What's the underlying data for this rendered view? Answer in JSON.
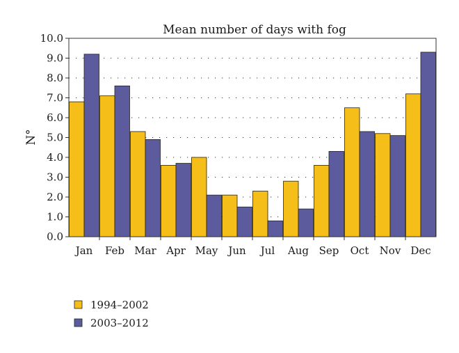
{
  "chart_data": {
    "type": "bar",
    "title": "Mean number of days with fog",
    "xlabel": "",
    "ylabel": "N°",
    "ylim": [
      0,
      10
    ],
    "yticks": [
      "0.0",
      "1.0",
      "2.0",
      "3.0",
      "4.0",
      "5.0",
      "6.0",
      "7.0",
      "8.0",
      "9.0",
      "10.0"
    ],
    "grid": "horizontal-dotted",
    "legend_position": "bottom-left",
    "categories": [
      "Jan",
      "Feb",
      "Mar",
      "Apr",
      "May",
      "Jun",
      "Jul",
      "Aug",
      "Sep",
      "Oct",
      "Nov",
      "Dec"
    ],
    "series": [
      {
        "name": "1994–2002",
        "color": "#f5be18",
        "values": [
          6.8,
          7.1,
          5.3,
          3.6,
          4.0,
          2.1,
          2.3,
          2.8,
          3.6,
          6.5,
          5.2,
          7.2
        ]
      },
      {
        "name": "2003–2012",
        "color": "#5b5b9e",
        "values": [
          9.2,
          7.6,
          4.9,
          3.7,
          2.1,
          1.5,
          0.8,
          1.4,
          4.3,
          5.3,
          5.1,
          9.3
        ]
      }
    ]
  }
}
